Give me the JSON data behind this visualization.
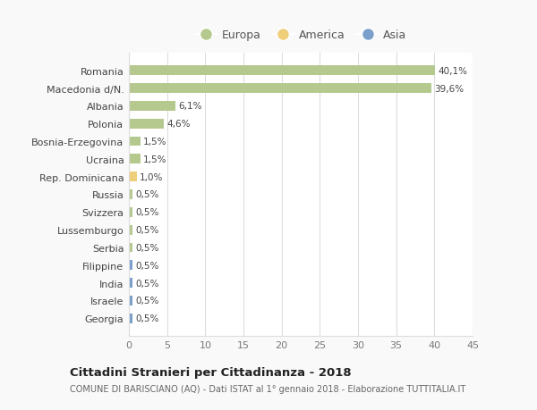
{
  "categories": [
    "Georgia",
    "Israele",
    "India",
    "Filippine",
    "Serbia",
    "Lussemburgo",
    "Svizzera",
    "Russia",
    "Rep. Dominicana",
    "Ucraina",
    "Bosnia-Erzegovina",
    "Polonia",
    "Albania",
    "Macedonia d/N.",
    "Romania"
  ],
  "values": [
    0.5,
    0.5,
    0.5,
    0.5,
    0.5,
    0.5,
    0.5,
    0.5,
    1.0,
    1.5,
    1.5,
    4.6,
    6.1,
    39.6,
    40.1
  ],
  "labels": [
    "0,5%",
    "0,5%",
    "0,5%",
    "0,5%",
    "0,5%",
    "0,5%",
    "0,5%",
    "0,5%",
    "1,0%",
    "1,5%",
    "1,5%",
    "4,6%",
    "6,1%",
    "39,6%",
    "40,1%"
  ],
  "colors": [
    "#7b9fcb",
    "#7b9fcb",
    "#7b9fcb",
    "#7b9fcb",
    "#b5c98e",
    "#b5c98e",
    "#b5c98e",
    "#b5c98e",
    "#f0cf7a",
    "#b5c98e",
    "#b5c98e",
    "#b5c98e",
    "#b5c98e",
    "#b5c98e",
    "#b5c98e"
  ],
  "legend_labels": [
    "Europa",
    "America",
    "Asia"
  ],
  "legend_colors": [
    "#b5c98e",
    "#f0cf7a",
    "#7b9fcb"
  ],
  "title": "Cittadini Stranieri per Cittadinanza - 2018",
  "subtitle": "COMUNE DI BARISCIANO (AQ) - Dati ISTAT al 1° gennaio 2018 - Elaborazione TUTTITALIA.IT",
  "xlim": [
    0,
    45
  ],
  "xticks": [
    0,
    5,
    10,
    15,
    20,
    25,
    30,
    35,
    40,
    45
  ],
  "bg_color": "#f9f9f9",
  "plot_bg_color": "#ffffff",
  "grid_color": "#dddddd",
  "bar_height": 0.55
}
